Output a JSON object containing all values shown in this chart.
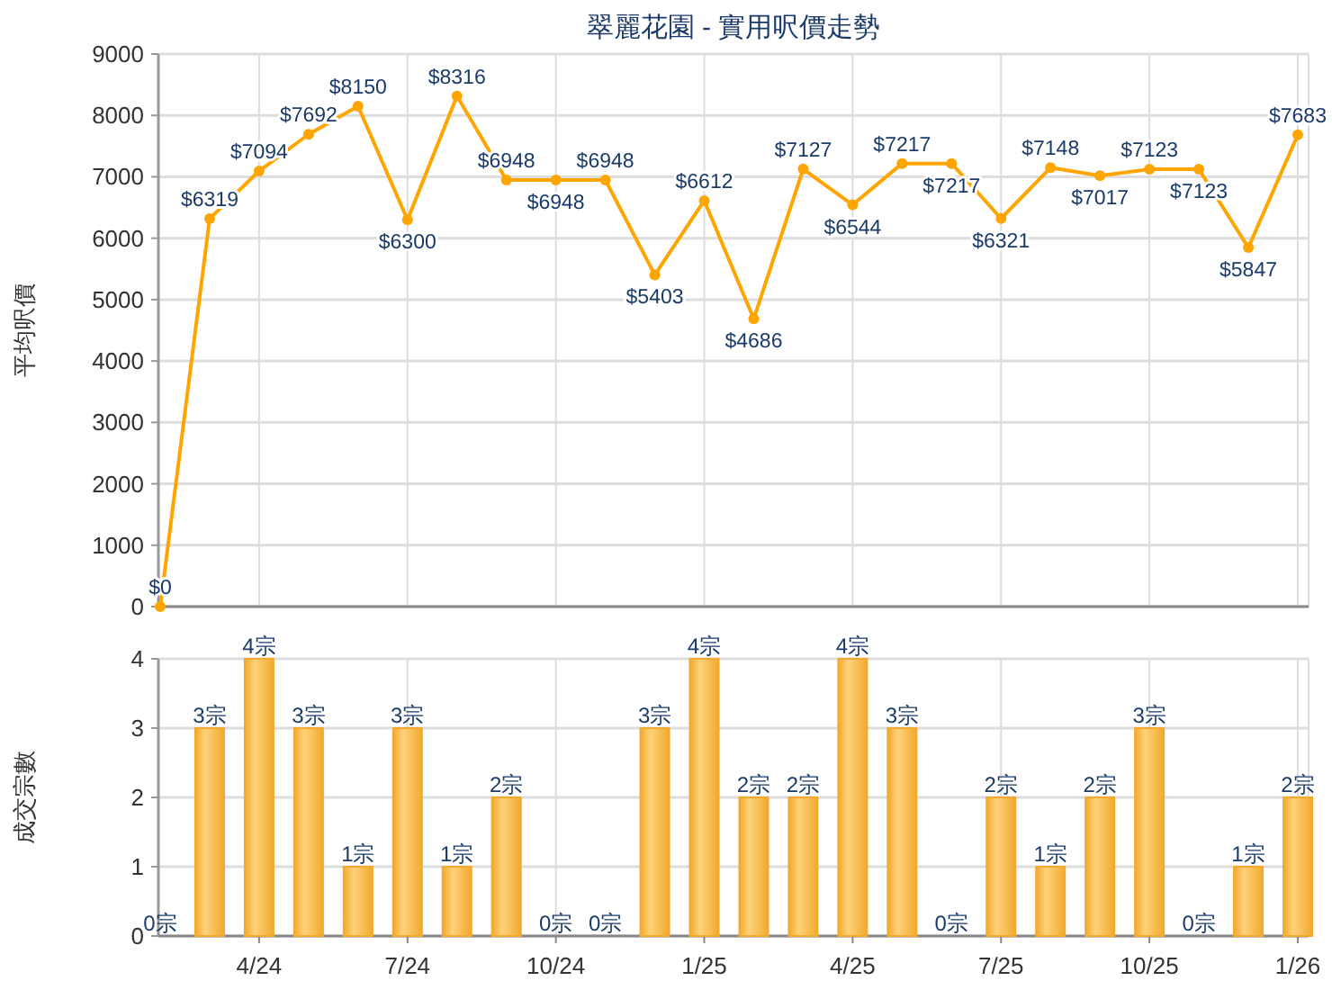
{
  "chart_data": [
    {
      "type": "line",
      "title": "翠麗花園 - 實用呎價走勢",
      "ylabel": "平均呎價",
      "categories": [
        null,
        null,
        null,
        null,
        null,
        null,
        null,
        null,
        null,
        null,
        null,
        null,
        null,
        null,
        null,
        null,
        null,
        null,
        null,
        null,
        null,
        null,
        null,
        null
      ],
      "series": [
        {
          "color": "#ffa500",
          "values": [
            0,
            6319,
            7094,
            7692,
            8150,
            6300,
            8316,
            6948,
            6948,
            6948,
            5403,
            6612,
            4686,
            7127,
            6544,
            7217,
            7217,
            6321,
            7148,
            7017,
            7123,
            7123,
            5847,
            7683
          ],
          "value_labels": [
            "$0",
            "$6319",
            "$7094",
            "$7692",
            "$8150",
            "$6300",
            "$8316",
            "$6948",
            "$6948",
            "$6948",
            "$5403",
            "$6612",
            "$4686",
            "$7127",
            "$6544",
            "$7217",
            "$7217",
            "$6321",
            "$7148",
            "$7017",
            "$7123",
            "$7123",
            "$5847",
            "$7683"
          ]
        }
      ],
      "marker": "circle",
      "ylim": [
        0,
        9000
      ],
      "yticks": [
        0,
        1000,
        2000,
        3000,
        4000,
        5000,
        6000,
        7000,
        8000,
        9000
      ],
      "grid": true,
      "tick_labels": "y"
    },
    {
      "type": "bar",
      "ylabel": "成交宗數",
      "categories": [
        null,
        null,
        "4/24",
        null,
        null,
        "7/24",
        null,
        null,
        "10/24",
        null,
        null,
        "1/25",
        null,
        null,
        "4/25",
        null,
        null,
        "7/25",
        null,
        null,
        "10/25",
        null,
        null,
        "1/26"
      ],
      "values": [
        0,
        3,
        4,
        3,
        1,
        3,
        1,
        2,
        0,
        0,
        3,
        4,
        2,
        2,
        4,
        3,
        0,
        2,
        1,
        2,
        3,
        0,
        1,
        2
      ],
      "value_labels": [
        "0宗",
        "3宗",
        "4宗",
        "3宗",
        "1宗",
        "3宗",
        "1宗",
        "2宗",
        "0宗",
        "0宗",
        "3宗",
        "4宗",
        "2宗",
        "2宗",
        "4宗",
        "3宗",
        "0宗",
        "2宗",
        "1宗",
        "2宗",
        "3宗",
        "0宗",
        "1宗",
        "2宗"
      ],
      "color": "#f2a92e",
      "ylim": [
        0,
        4
      ],
      "yticks": [
        0,
        1,
        2,
        3,
        4
      ],
      "grid": true
    }
  ]
}
